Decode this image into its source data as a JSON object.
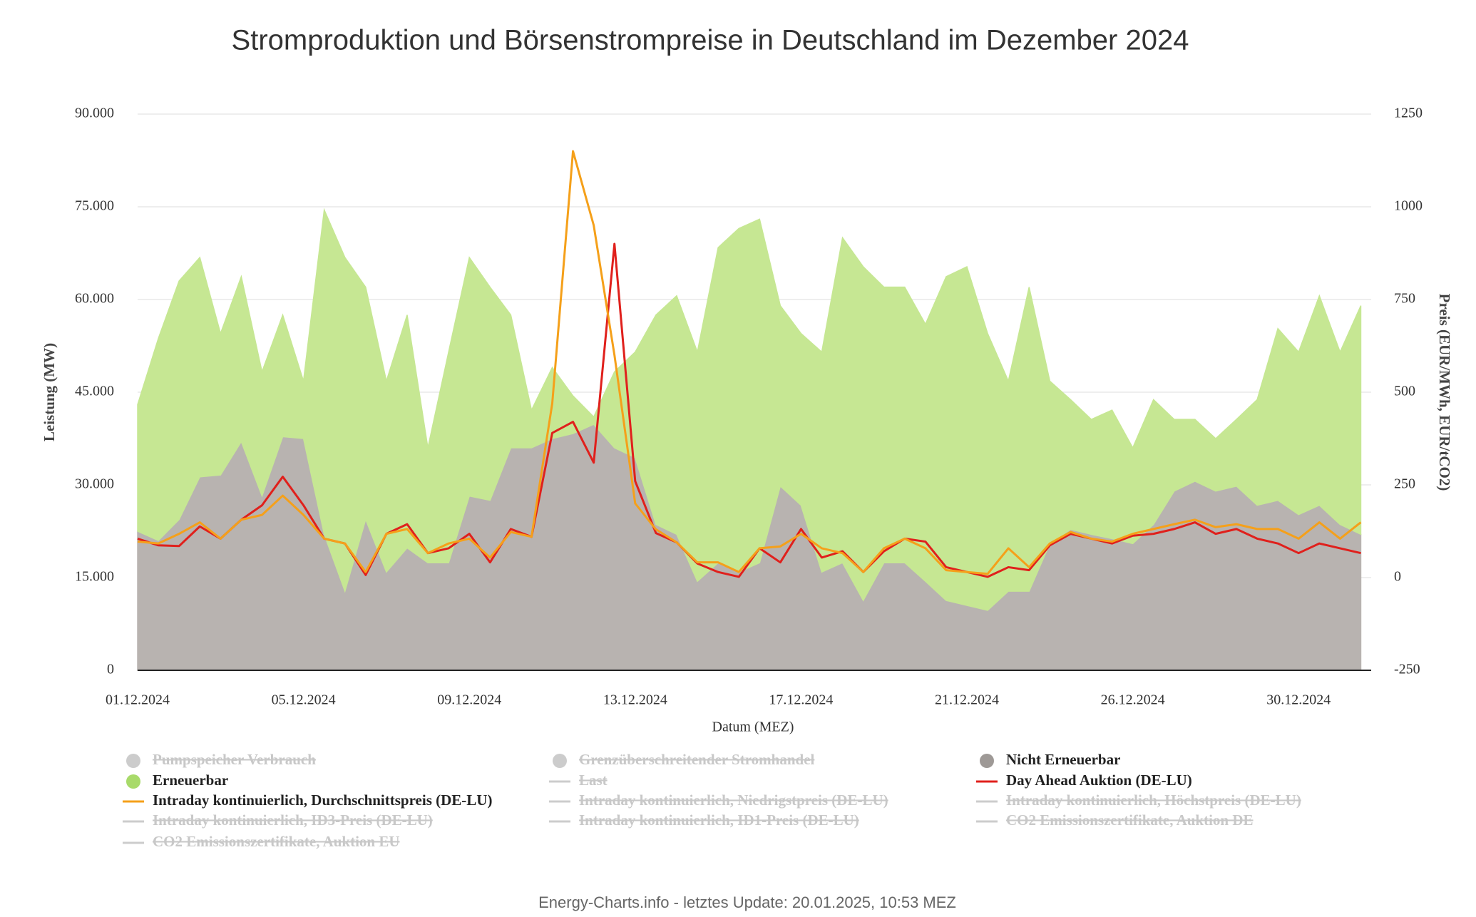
{
  "chart_data": {
    "type": "line",
    "title": "Stromproduktion und Börsenstrompreise in Deutschland im Dezember 2024",
    "ylabel": "Leistung (MW)",
    "y2label": "Preis (EUR/MWh, EUR/tCO2)",
    "xlabel": "Datum (MEZ)",
    "stacked": true,
    "grid": true,
    "categories": [
      "01.12.2024",
      null,
      null,
      null,
      null,
      null,
      null,
      null,
      "05.12.2024",
      null,
      null,
      null,
      null,
      null,
      null,
      null,
      "09.12.2024",
      null,
      null,
      null,
      null,
      null,
      null,
      null,
      "13.12.2024",
      null,
      null,
      null,
      null,
      null,
      null,
      null,
      "17.12.2024",
      null,
      null,
      null,
      null,
      null,
      null,
      null,
      "21.12.2024",
      null,
      null,
      null,
      null,
      null,
      null,
      null,
      "26.12.2024",
      null,
      null,
      null,
      null,
      null,
      null,
      null,
      "30.12.2024",
      null,
      null,
      null
    ],
    "ylim": [
      0,
      90000
    ],
    "yticks": [
      0,
      {
        "value": 15000,
        "label": "15.000"
      },
      {
        "value": 30000,
        "label": "30.000"
      },
      {
        "value": 45000,
        "label": "45.000"
      },
      {
        "value": 60000,
        "label": "60.000"
      },
      {
        "value": 75000,
        "label": "75.000"
      },
      {
        "value": 90000,
        "label": "90.000"
      }
    ],
    "y2lim": [
      -250,
      1250
    ],
    "y2ticks": [
      -250,
      0,
      250,
      500,
      750,
      1000,
      1250
    ],
    "series": [
      {
        "name": "Pumpspeicher Verbrauch",
        "color": "#cccccc",
        "marker": "circle",
        "visible": false
      },
      {
        "name": "Grenzüberschreitender Stromhandel",
        "color": "#cccccc",
        "marker": "circle",
        "visible": false
      },
      {
        "name": "Nicht Erneuerbar",
        "color": "#b8b3b0",
        "marker": "circle",
        "visible": true,
        "type": "area",
        "values": [
          22500,
          21000,
          24400,
          31300,
          31600,
          37000,
          28200,
          37800,
          37500,
          22000,
          12800,
          24400,
          15900,
          19800,
          17400,
          17400,
          28200,
          27500,
          36000,
          36000,
          37500,
          38300,
          39800,
          36000,
          34400,
          23600,
          22000,
          14400,
          17400,
          15900,
          17400,
          29800,
          26700,
          15900,
          17400,
          11300,
          17400,
          17400,
          14400,
          11300,
          10500,
          9700,
          12800,
          12800,
          20500,
          22800,
          22000,
          21300,
          20500,
          23600,
          29000,
          30600,
          29000,
          29800,
          26700,
          27500,
          25200,
          26700,
          23600,
          22000
        ]
      },
      {
        "name": "Erneuerbar",
        "color": "#c6e793",
        "marker": "circle",
        "visible": true,
        "type": "area",
        "values": [
          20500,
          32700,
          38600,
          35500,
          22900,
          26700,
          20100,
          19700,
          9300,
          52500,
          54000,
          37600,
          30900,
          37700,
          18600,
          34100,
          38600,
          34500,
          21500,
          6100,
          11500,
          6100,
          1200,
          12300,
          17100,
          33900,
          38600,
          37100,
          51000,
          55600,
          55600,
          29200,
          27800,
          35600,
          52600,
          54000,
          44600,
          44600,
          41600,
          52400,
          54800,
          44800,
          34000,
          49200,
          26300,
          21000,
          18600,
          20800,
          15500,
          20200,
          11600,
          10000,
          8500,
          10800,
          17100,
          27800,
          26300,
          33900,
          27900,
          37000
        ]
      },
      {
        "name": "Last",
        "color": "#cccccc",
        "marker": "line",
        "visible": false
      },
      {
        "name": "Day Ahead Auktion (DE-LU)",
        "color": "#e0201c",
        "marker": "line",
        "visible": true,
        "type": "line",
        "axis": "y2",
        "values": [
          105,
          87,
          85,
          138,
          105,
          156,
          195,
          272,
          195,
          105,
          92,
          7,
          118,
          144,
          66,
          79,
          118,
          41,
          131,
          110,
          390,
          420,
          310,
          900,
          260,
          120,
          95,
          38,
          15,
          2,
          79,
          41,
          131,
          54,
          71,
          15,
          71,
          105,
          97,
          28,
          15,
          2,
          28,
          20,
          87,
          118,
          105,
          92,
          113,
          118,
          131,
          149,
          118,
          131,
          105,
          92,
          66,
          92,
          79,
          66
        ]
      },
      {
        "name": "Intraday kontinuierlich, Durchschnittspreis (DE-LU)",
        "color": "#f5a01a",
        "marker": "line",
        "visible": true,
        "type": "line",
        "axis": "y2",
        "values": [
          97,
          92,
          118,
          149,
          105,
          156,
          169,
          221,
          169,
          105,
          92,
          15,
          118,
          131,
          66,
          92,
          105,
          54,
          123,
          110,
          470,
          1150,
          950,
          600,
          200,
          130,
          95,
          41,
          41,
          15,
          79,
          84,
          118,
          79,
          66,
          15,
          79,
          105,
          79,
          20,
          15,
          10,
          79,
          28,
          92,
          123,
          105,
          97,
          118,
          131,
          144,
          156,
          136,
          144,
          131,
          131,
          105,
          149,
          105,
          149
        ]
      },
      {
        "name": "Intraday kontinuierlich, Niedrigstpreis (DE-LU)",
        "color": "#cccccc",
        "marker": "line",
        "visible": false
      },
      {
        "name": "Intraday kontinuierlich, Höchstpreis (DE-LU)",
        "color": "#cccccc",
        "marker": "line",
        "visible": false
      },
      {
        "name": "Intraday kontinuierlich, ID3-Preis (DE-LU)",
        "color": "#cccccc",
        "marker": "line",
        "visible": false
      },
      {
        "name": "Intraday kontinuierlich, ID1-Preis (DE-LU)",
        "color": "#cccccc",
        "marker": "line",
        "visible": false
      },
      {
        "name": "CO2 Emissionszertifikate, Auktion DE",
        "color": "#cccccc",
        "marker": "line",
        "visible": false
      },
      {
        "name": "CO2 Emissionszertifikate, Auktion EU",
        "color": "#cccccc",
        "marker": "line",
        "visible": false
      }
    ]
  },
  "footer": "Energy-Charts.info - letztes Update: 20.01.2025, 10:53 MEZ"
}
